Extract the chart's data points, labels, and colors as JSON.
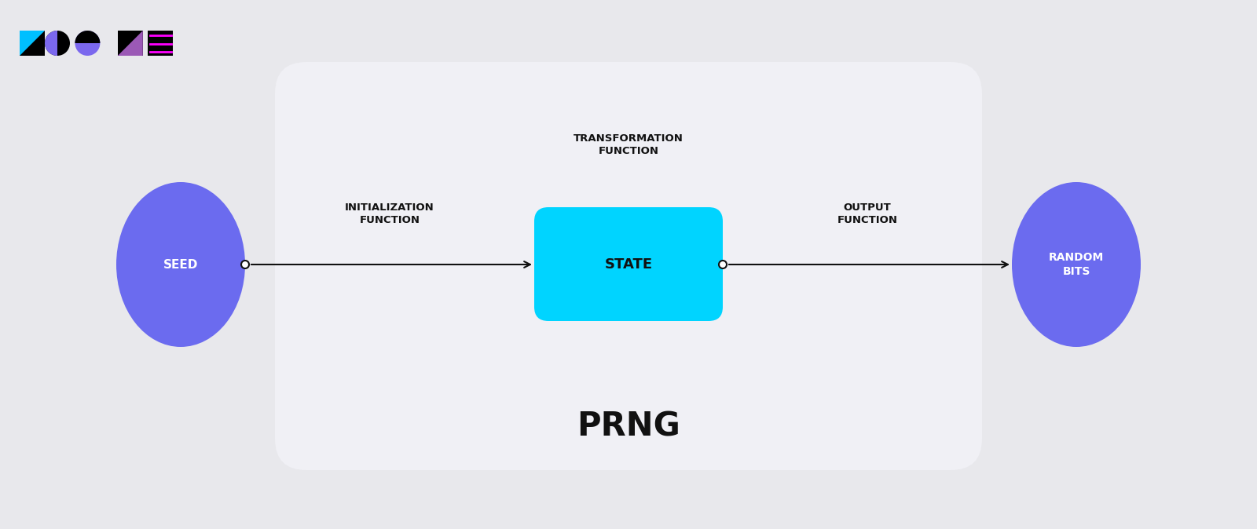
{
  "bg_color": "#e8e8ec",
  "panel_color": "#f0f0f5",
  "seed_circle_color": "#6b6bef",
  "random_bits_circle_color": "#6b6bef",
  "state_box_color": "#00d4ff",
  "arrow_color": "#111111",
  "text_color_white": "#ffffff",
  "text_color_black": "#111111",
  "title": "PRNG",
  "seed_label": "SEED",
  "random_bits_label": "RANDOM\nBITS",
  "state_label": "STATE",
  "init_func_label": "INITIALIZATION\nFUNCTION",
  "output_func_label": "OUTPUT\nFUNCTION",
  "transform_func_label": "TRANSFORMATION\nFUNCTION",
  "figsize": [
    16.0,
    6.74
  ],
  "dpi": 100
}
